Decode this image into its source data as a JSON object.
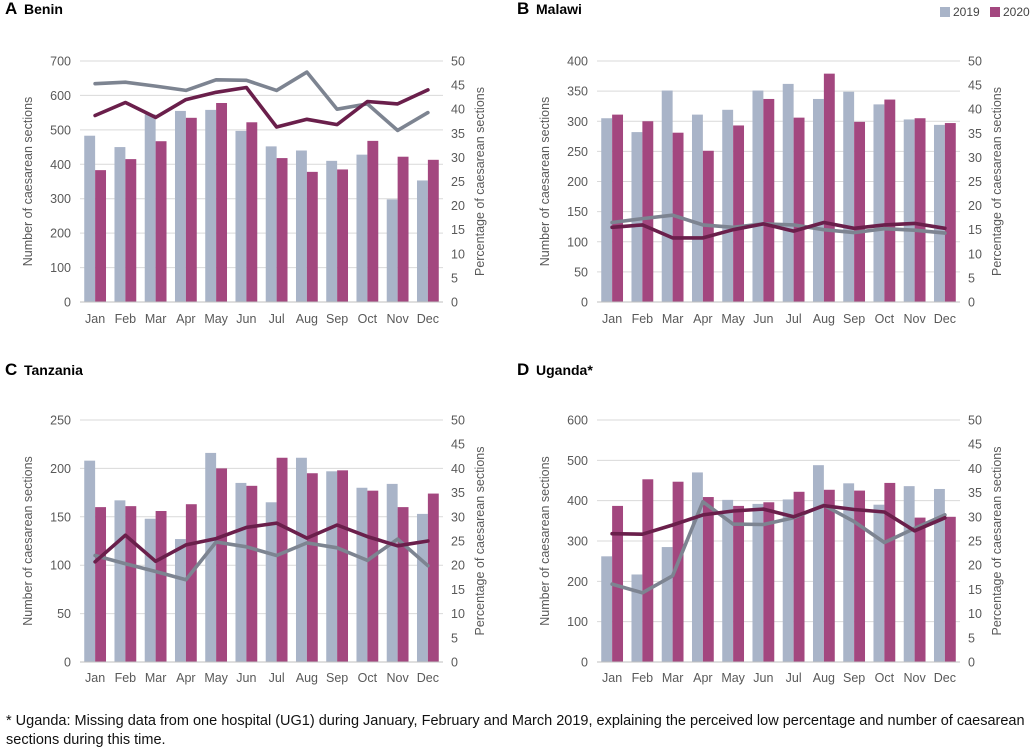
{
  "legend": {
    "items": [
      {
        "label": "2019",
        "color": "#A9B4C8"
      },
      {
        "label": "2020",
        "color": "#A3477F"
      }
    ]
  },
  "colors": {
    "bar_2019": "#A9B4C8",
    "bar_2020": "#A3477F",
    "line_2019": "#7D8491",
    "line_2020": "#6A1F4B",
    "axis_text": "#595959",
    "grid": "#D9D9D9"
  },
  "footnote": "* Uganda: Missing data from one hospital (UG1) during January, February and March 2019, explaining the perceived low percentage and number of caesarean sections during this time.",
  "chart_data": [
    {
      "panel_letter": "A",
      "title": "Benin",
      "type": "bar",
      "categories": [
        "Jan",
        "Feb",
        "Mar",
        "Apr",
        "May",
        "Jun",
        "Jul",
        "Aug",
        "Sep",
        "Oct",
        "Nov",
        "Dec"
      ],
      "ylabel": "Number of caesarean sections",
      "y2label": "Percentage of caesarean sections",
      "ylim": [
        0,
        700
      ],
      "yticks": [
        0,
        100,
        200,
        300,
        400,
        500,
        600,
        700
      ],
      "y2lim": [
        0,
        50
      ],
      "y2ticks": [
        0,
        5,
        10,
        15,
        20,
        25,
        30,
        35,
        40,
        45,
        50
      ],
      "series": [
        {
          "name": "2019",
          "kind": "bar",
          "axis": "left",
          "values": [
            483,
            450,
            545,
            555,
            558,
            497,
            452,
            440,
            410,
            428,
            298,
            353
          ]
        },
        {
          "name": "2020",
          "kind": "bar",
          "axis": "left",
          "values": [
            383,
            415,
            467,
            535,
            578,
            522,
            418,
            378,
            385,
            468,
            422,
            413
          ]
        },
        {
          "name": "2019",
          "kind": "line",
          "axis": "right",
          "values": [
            45.3,
            45.6,
            44.8,
            43.9,
            46.1,
            46.0,
            43.9,
            47.7,
            40.0,
            41.1,
            35.6,
            39.3
          ]
        },
        {
          "name": "2020",
          "kind": "line",
          "axis": "right",
          "values": [
            38.7,
            41.4,
            38.3,
            42.0,
            43.5,
            44.5,
            36.3,
            37.9,
            36.8,
            41.6,
            41.1,
            44.0
          ]
        }
      ]
    },
    {
      "panel_letter": "B",
      "title": "Malawi",
      "type": "bar",
      "categories": [
        "Jan",
        "Feb",
        "Mar",
        "Apr",
        "May",
        "Jun",
        "Jul",
        "Aug",
        "Sep",
        "Oct",
        "Nov",
        "Dec"
      ],
      "ylabel": "Number of caesarean sections",
      "y2label": "Percentage of caesarean sections",
      "ylim": [
        0,
        400
      ],
      "yticks": [
        0,
        50,
        100,
        150,
        200,
        250,
        300,
        350,
        400
      ],
      "y2lim": [
        0,
        50
      ],
      "y2ticks": [
        0,
        5,
        10,
        15,
        20,
        25,
        30,
        35,
        40,
        45,
        50
      ],
      "series": [
        {
          "name": "2019",
          "kind": "bar",
          "axis": "left",
          "values": [
            305,
            282,
            351,
            311,
            319,
            351,
            362,
            337,
            349,
            328,
            303,
            294
          ]
        },
        {
          "name": "2020",
          "kind": "bar",
          "axis": "left",
          "values": [
            311,
            300,
            281,
            251,
            293,
            337,
            306,
            379,
            299,
            336,
            305,
            297
          ]
        },
        {
          "name": "2019",
          "kind": "line",
          "axis": "right",
          "values": [
            16.5,
            17.3,
            18.0,
            16.0,
            15.5,
            16.2,
            16.0,
            15.0,
            14.4,
            15.2,
            14.9,
            14.3
          ]
        },
        {
          "name": "2020",
          "kind": "line",
          "axis": "right",
          "values": [
            15.5,
            16.0,
            13.3,
            13.3,
            15.0,
            16.2,
            14.7,
            16.5,
            15.3,
            16.0,
            16.3,
            15.3
          ]
        }
      ]
    },
    {
      "panel_letter": "C",
      "title": "Tanzania",
      "type": "bar",
      "categories": [
        "Jan",
        "Feb",
        "Mar",
        "Apr",
        "May",
        "Jun",
        "Jul",
        "Aug",
        "Sep",
        "Oct",
        "Nov",
        "Dec"
      ],
      "ylabel": "Number of caesarean sections",
      "y2label": "Percentage of caesarean sections",
      "ylim": [
        0,
        250
      ],
      "yticks": [
        0,
        50,
        100,
        150,
        200,
        250
      ],
      "y2lim": [
        0,
        50
      ],
      "y2ticks": [
        0,
        5,
        10,
        15,
        20,
        25,
        30,
        35,
        40,
        45,
        50
      ],
      "series": [
        {
          "name": "2019",
          "kind": "bar",
          "axis": "left",
          "values": [
            208,
            167,
            148,
            127,
            216,
            185,
            165,
            211,
            197,
            180,
            184,
            153
          ]
        },
        {
          "name": "2020",
          "kind": "bar",
          "axis": "left",
          "values": [
            160,
            161,
            156,
            163,
            200,
            182,
            211,
            195,
            198,
            177,
            160,
            174
          ]
        },
        {
          "name": "2019",
          "kind": "line",
          "axis": "right",
          "values": [
            22.0,
            20.3,
            18.7,
            17.0,
            24.8,
            23.8,
            22.0,
            24.6,
            23.6,
            21.0,
            25.4,
            19.9
          ]
        },
        {
          "name": "2020",
          "kind": "line",
          "axis": "right",
          "values": [
            20.7,
            26.2,
            20.8,
            24.2,
            25.5,
            27.8,
            28.7,
            25.6,
            28.3,
            25.9,
            24.0,
            25.0
          ]
        }
      ]
    },
    {
      "panel_letter": "D",
      "title": "Uganda*",
      "type": "bar",
      "categories": [
        "Jan",
        "Feb",
        "Mar",
        "Apr",
        "May",
        "Jun",
        "Jul",
        "Aug",
        "Sep",
        "Oct",
        "Nov",
        "Dec"
      ],
      "ylabel": "Number of caesarean sections",
      "y2label": "Percentage of caesarean sections",
      "ylim": [
        0,
        600
      ],
      "yticks": [
        0,
        100,
        200,
        300,
        400,
        500,
        600
      ],
      "y2lim": [
        0,
        50
      ],
      "y2ticks": [
        0,
        5,
        10,
        15,
        20,
        25,
        30,
        35,
        40,
        45,
        50
      ],
      "series": [
        {
          "name": "2019",
          "kind": "bar",
          "axis": "left",
          "values": [
            262,
            217,
            285,
            470,
            402,
            392,
            403,
            488,
            443,
            390,
            436,
            429
          ]
        },
        {
          "name": "2020",
          "kind": "bar",
          "axis": "left",
          "values": [
            387,
            453,
            447,
            409,
            387,
            396,
            422,
            427,
            425,
            444,
            358,
            360
          ]
        },
        {
          "name": "2019",
          "kind": "line",
          "axis": "right",
          "values": [
            16.1,
            14.3,
            17.8,
            33.1,
            28.5,
            28.4,
            29.8,
            32.4,
            29.0,
            24.7,
            27.6,
            30.4
          ]
        },
        {
          "name": "2020",
          "kind": "line",
          "axis": "right",
          "values": [
            26.5,
            26.4,
            28.3,
            30.4,
            31.2,
            31.6,
            30.0,
            32.3,
            31.5,
            31.0,
            27.1,
            29.8
          ]
        }
      ]
    }
  ]
}
